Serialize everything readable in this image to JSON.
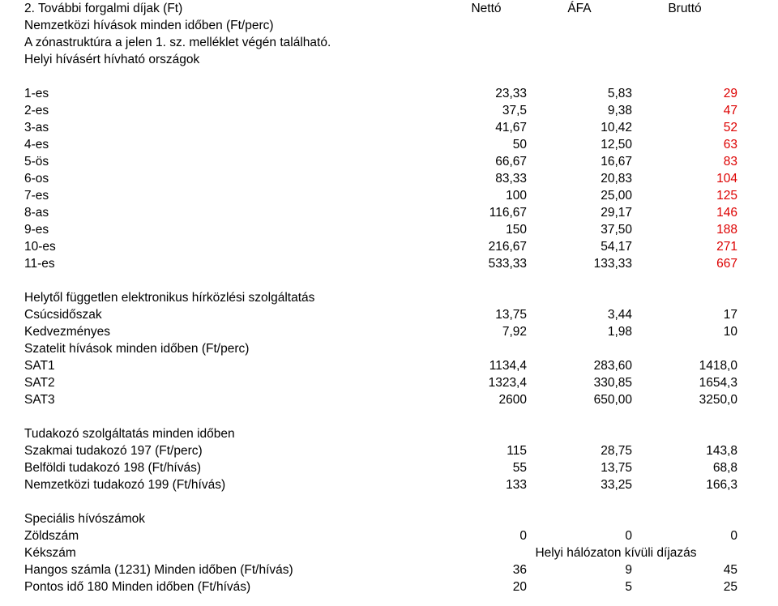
{
  "colors": {
    "text": "#000000",
    "highlight": "#dd0000",
    "background": "#ffffff"
  },
  "header": {
    "sectionTitle": "2. További forgalmi díjak (Ft)",
    "col1": "Nettó",
    "col2": "ÁFA",
    "col3": "Bruttó",
    "line2": "Nemzetközi hívások minden időben (Ft/perc)",
    "line3": "A zónastruktúra a jelen 1. sz. melléklet végén található.",
    "line4": "Helyi hívásért hívható országok"
  },
  "zones": {
    "rows": [
      {
        "label": "1-es",
        "net": "23,33",
        "vat": "5,83",
        "gross": "29"
      },
      {
        "label": "2-es",
        "net": "37,5",
        "vat": "9,38",
        "gross": "47"
      },
      {
        "label": "3-as",
        "net": "41,67",
        "vat": "10,42",
        "gross": "52"
      },
      {
        "label": "4-es",
        "net": "50",
        "vat": "12,50",
        "gross": "63"
      },
      {
        "label": "5-ös",
        "net": "66,67",
        "vat": "16,67",
        "gross": "83"
      },
      {
        "label": "6-os",
        "net": "83,33",
        "vat": "20,83",
        "gross": "104"
      },
      {
        "label": "7-es",
        "net": "100",
        "vat": "25,00",
        "gross": "125"
      },
      {
        "label": "8-as",
        "net": "116,67",
        "vat": "29,17",
        "gross": "146"
      },
      {
        "label": "9-es",
        "net": "150",
        "vat": "37,50",
        "gross": "188"
      },
      {
        "label": "10-es",
        "net": "216,67",
        "vat": "54,17",
        "gross": "271"
      },
      {
        "label": "11-es",
        "net": "533,33",
        "vat": "133,33",
        "gross": "667"
      }
    ]
  },
  "block2": {
    "title": "Helytől független elektronikus hírközlési szolgáltatás",
    "rows": [
      {
        "label": "Csúcsidőszak",
        "net": "13,75",
        "vat": "3,44",
        "gross": "17"
      },
      {
        "label": "Kedvezményes",
        "net": "7,92",
        "vat": "1,98",
        "gross": "10"
      }
    ],
    "subTitle": "Szatelit hívások minden időben (Ft/perc)",
    "rows2": [
      {
        "label": "SAT1",
        "net": "1134,4",
        "vat": "283,60",
        "gross": "1418,0"
      },
      {
        "label": "SAT2",
        "net": "1323,4",
        "vat": "330,85",
        "gross": "1654,3"
      },
      {
        "label": "SAT3",
        "net": "2600",
        "vat": "650,00",
        "gross": "3250,0"
      }
    ]
  },
  "block3": {
    "title": "Tudakozó szolgáltatás minden időben",
    "rows": [
      {
        "label": "Szakmai tudakozó 197 (Ft/perc)",
        "net": "115",
        "vat": "28,75",
        "gross": "143,8"
      },
      {
        "label": "Belföldi tudakozó 198 (Ft/hívás)",
        "net": "55",
        "vat": "13,75",
        "gross": "68,8"
      },
      {
        "label": "Nemzetközi tudakozó 199 (Ft/hívás)",
        "net": "133",
        "vat": "33,25",
        "gross": "166,3"
      }
    ]
  },
  "block4": {
    "title": "Speciális hívószámok",
    "row1": {
      "label": "Zöldszám",
      "net": "0",
      "vat": "0",
      "gross": "0"
    },
    "row2": {
      "label": "Kékszám",
      "text": "Helyi hálózaton kívüli díjazás"
    },
    "rows3": [
      {
        "label": "Hangos számla (1231) Minden időben (Ft/hívás)",
        "net": "36",
        "vat": "9",
        "gross": "45"
      },
      {
        "label": "Pontos idő 180 Minden időben (Ft/hívás)",
        "net": "20",
        "vat": "5",
        "gross": "25"
      }
    ]
  }
}
